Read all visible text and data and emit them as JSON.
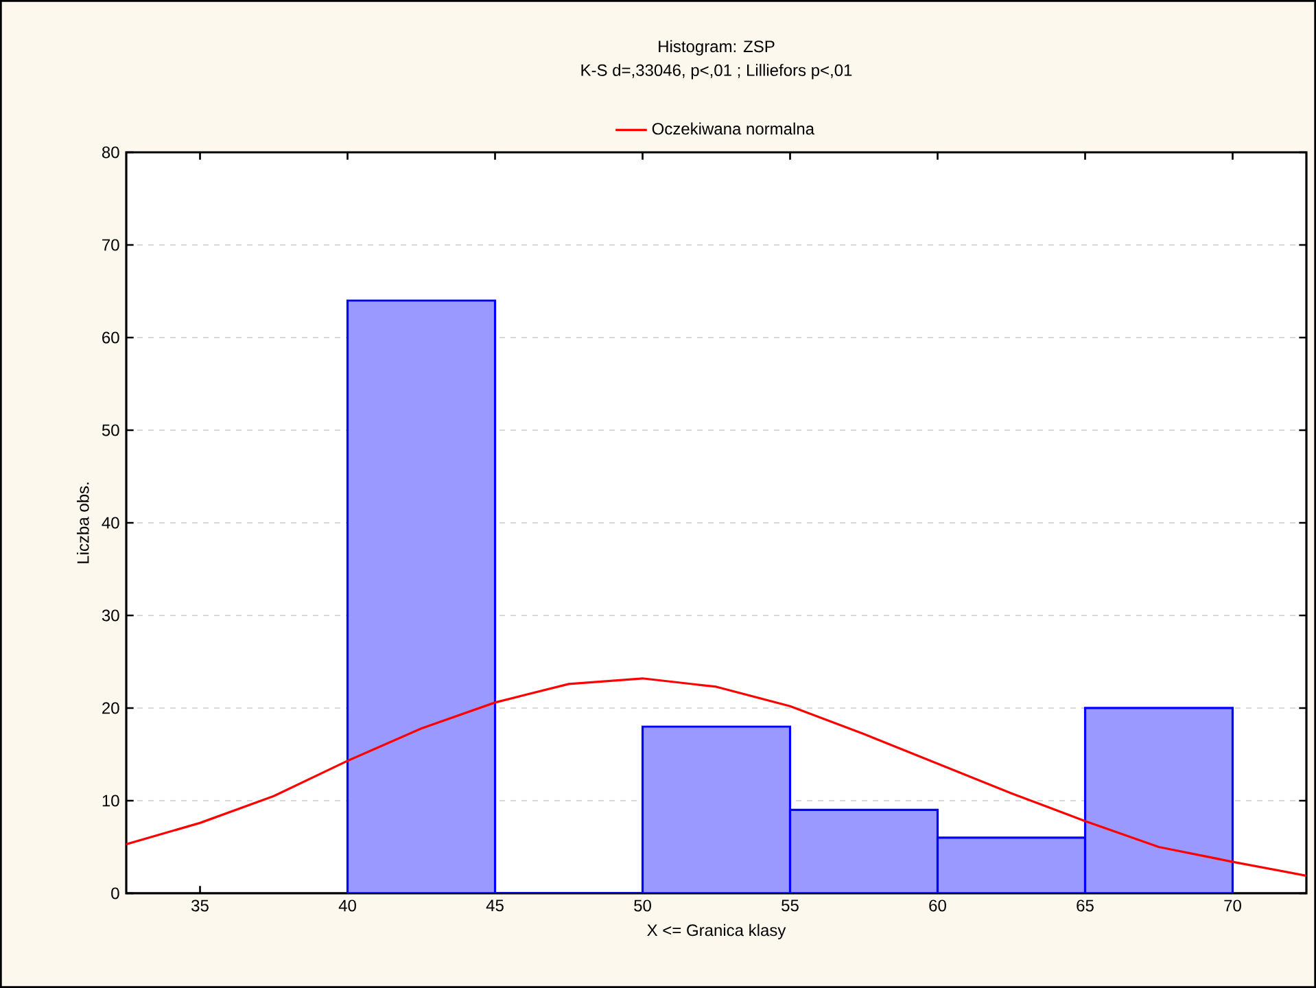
{
  "chart_data": {
    "type": "histogram",
    "title": "Histogram: ZSP",
    "subtitle": "K-S d=,33046, p<,01 ; Lilliefors p<,01",
    "xlabel": "X <= Granica klasy",
    "ylabel": "Liczba obs.",
    "bins": [
      40,
      45,
      50,
      55,
      60,
      65,
      70
    ],
    "values": [
      64,
      0,
      18,
      9,
      6,
      20
    ],
    "color": "#9999ff",
    "series": [
      {
        "type": "line",
        "name": "Oczekiwana normalna",
        "color": "#ff0000",
        "x": [
          32.5,
          35,
          37.5,
          40,
          42.5,
          45,
          47.5,
          50,
          52.5,
          55,
          57.5,
          60,
          62.5,
          65,
          67.5,
          70,
          72.5
        ],
        "values": [
          5.3,
          7.6,
          10.5,
          14.3,
          17.8,
          20.6,
          22.6,
          23.2,
          22.3,
          20.2,
          17.2,
          14.0,
          10.8,
          7.8,
          5.0,
          3.4,
          1.9
        ]
      }
    ],
    "xlim": [
      32.5,
      72.5
    ],
    "ylim": [
      0,
      80
    ],
    "xticks": [
      35,
      40,
      45,
      50,
      55,
      60,
      65,
      70
    ],
    "yticks": [
      0,
      10,
      20,
      30,
      40,
      50,
      60,
      70,
      80
    ],
    "grid": "y",
    "legend": "top"
  }
}
